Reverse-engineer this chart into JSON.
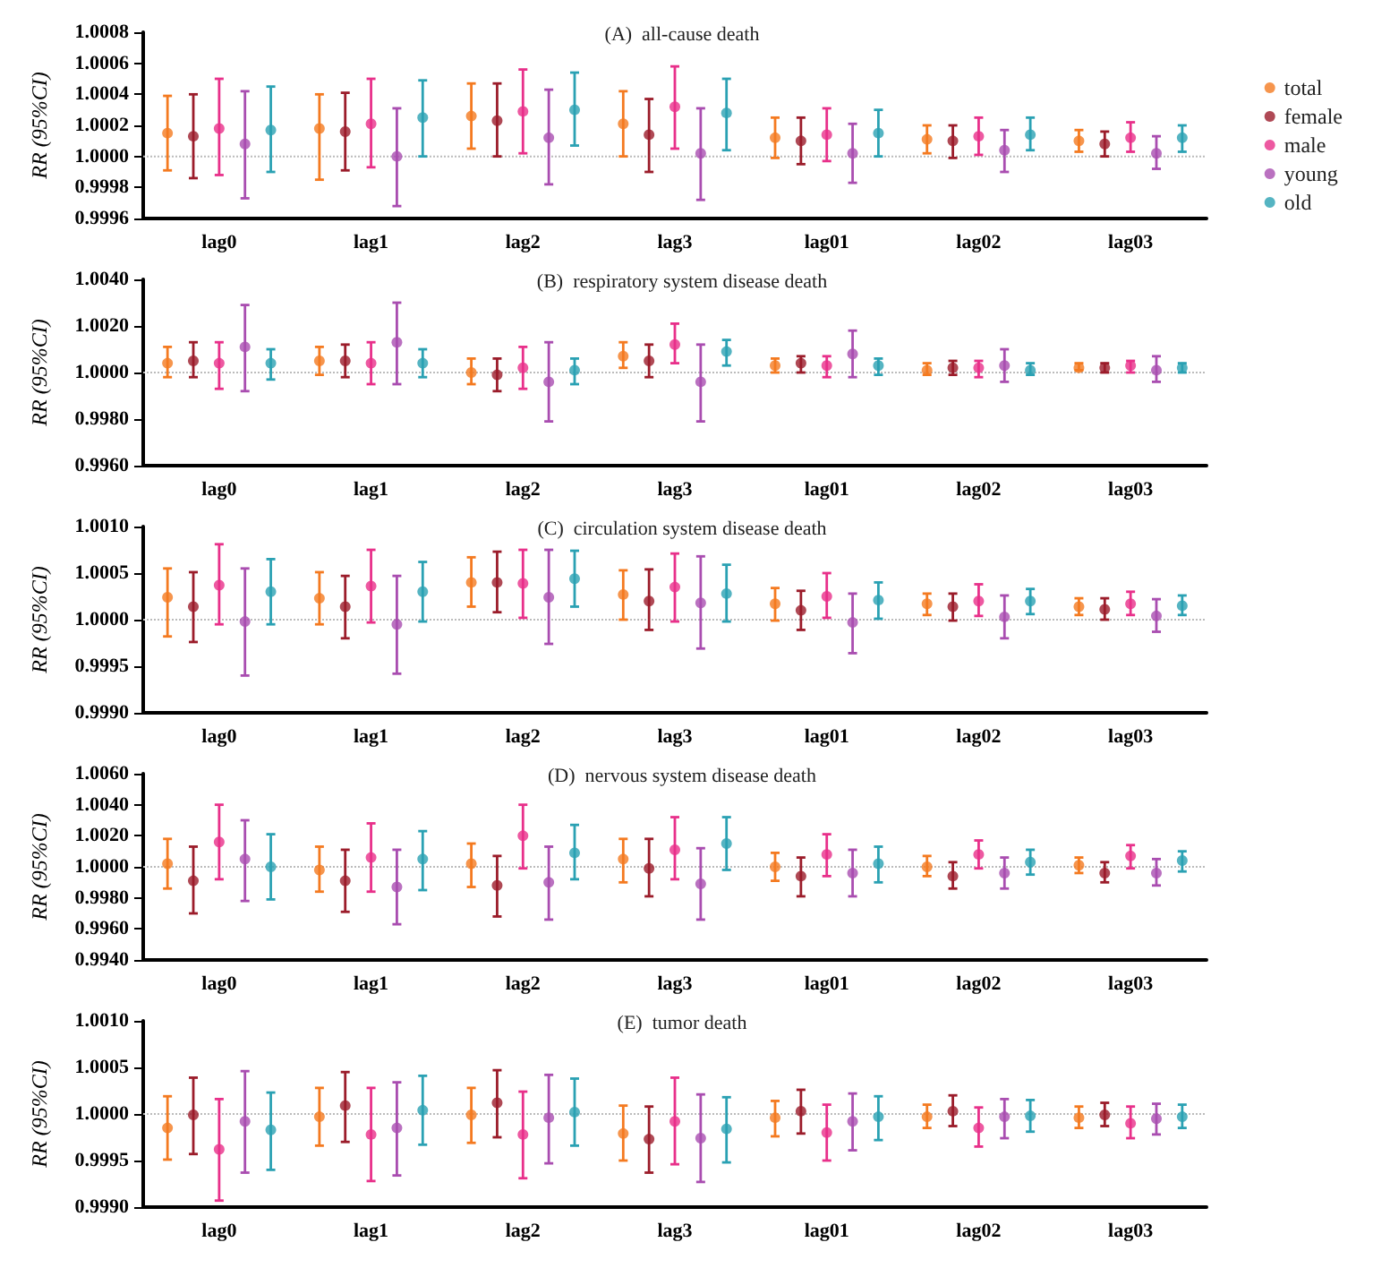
{
  "chart_data": [
    {
      "type": "scatter",
      "title": "(A)  all-cause death",
      "ylabel": "RR (95%CI)",
      "categories": [
        "lag0",
        "lag1",
        "lag2",
        "lag3",
        "lag01",
        "lag02",
        "lag03"
      ],
      "ylim": [
        0.9996,
        1.0008
      ],
      "yticks": [
        0.9996,
        0.9998,
        {
          "value": 1,
          "label": "1.0000"
        },
        1.0002,
        1.0004,
        1.0006,
        1.0008
      ],
      "grid": false,
      "legend": "right",
      "marker": "circle",
      "ref_lines": [
        {
          "axis": "y",
          "value": 1,
          "color": "#bbbbbb",
          "line_style": "dotted"
        }
      ],
      "series": [
        {
          "name": "total",
          "color": "#f47a20",
          "values": [
            1.00015,
            1.00018,
            1.00026,
            1.00021,
            1.00012,
            1.00011,
            1.0001
          ],
          "errors": [
            [
              0.99991,
              1.00039
            ],
            [
              0.99985,
              1.0004
            ],
            [
              1.00005,
              1.00047
            ],
            [
              1.0,
              1.00042
            ],
            [
              0.99999,
              1.00025
            ],
            [
              1.00002,
              1.0002
            ],
            [
              1.00003,
              1.00017
            ]
          ]
        },
        {
          "name": "female",
          "color": "#9b1c2a",
          "values": [
            1.00013,
            1.00016,
            1.00023,
            1.00014,
            1.0001,
            1.0001,
            1.00008
          ],
          "errors": [
            [
              0.99986,
              1.0004
            ],
            [
              0.99991,
              1.00041
            ],
            [
              1.0,
              1.00047
            ],
            [
              0.9999,
              1.00037
            ],
            [
              0.99995,
              1.00025
            ],
            [
              0.99999,
              1.0002
            ],
            [
              1.0,
              1.00016
            ]
          ]
        },
        {
          "name": "male",
          "color": "#e8308a",
          "values": [
            1.00018,
            1.00021,
            1.00029,
            1.00032,
            1.00014,
            1.00013,
            1.00012
          ],
          "errors": [
            [
              0.99988,
              1.0005
            ],
            [
              0.99993,
              1.0005
            ],
            [
              1.00002,
              1.00056
            ],
            [
              1.00005,
              1.00058
            ],
            [
              0.99997,
              1.00031
            ],
            [
              1.00001,
              1.00025
            ],
            [
              1.00003,
              1.00022
            ]
          ]
        },
        {
          "name": "young",
          "color": "#a94db0",
          "values": [
            1.00008,
            1.0,
            1.00012,
            1.00002,
            1.00002,
            1.00004,
            1.00002
          ],
          "errors": [
            [
              0.99973,
              1.00042
            ],
            [
              0.99968,
              1.00031
            ],
            [
              0.99982,
              1.00043
            ],
            [
              0.99972,
              1.00031
            ],
            [
              0.99983,
              1.00021
            ],
            [
              0.9999,
              1.00017
            ],
            [
              0.99992,
              1.00013
            ]
          ]
        },
        {
          "name": "old",
          "color": "#2aa1b3",
          "values": [
            1.00017,
            1.00025,
            1.0003,
            1.00028,
            1.00015,
            1.00014,
            1.00012
          ],
          "errors": [
            [
              0.9999,
              1.00045
            ],
            [
              1.0,
              1.00049
            ],
            [
              1.00007,
              1.00054
            ],
            [
              1.00004,
              1.0005
            ],
            [
              1.0,
              1.0003
            ],
            [
              1.00004,
              1.00025
            ],
            [
              1.00003,
              1.0002
            ]
          ]
        }
      ]
    },
    {
      "type": "scatter",
      "title": "(B)  respiratory system disease death",
      "ylabel": "RR (95%CI)",
      "categories": [
        "lag0",
        "lag1",
        "lag2",
        "lag3",
        "lag01",
        "lag02",
        "lag03"
      ],
      "ylim": [
        0.996,
        1.004
      ],
      "yticks": [
        {
          "value": 0.996,
          "label": "0.9960"
        },
        {
          "value": 0.998,
          "label": "0.9980"
        },
        {
          "value": 1,
          "label": "1.0000"
        },
        {
          "value": 1.002,
          "label": "1.0020"
        },
        {
          "value": 1.004,
          "label": "1.0040"
        }
      ],
      "grid": false,
      "legend": false,
      "marker": "circle",
      "ref_lines": [
        {
          "axis": "y",
          "value": 1,
          "color": "#bbbbbb",
          "line_style": "dotted"
        }
      ],
      "series": [
        {
          "color": "#f47a20",
          "values": [
            1.0004,
            1.0005,
            1.0,
            1.0007,
            1.0003,
            1.0001,
            1.0002
          ],
          "errors": [
            [
              0.9998,
              1.0011
            ],
            [
              0.9999,
              1.0011
            ],
            [
              0.9995,
              1.0006
            ],
            [
              1.0002,
              1.0013
            ],
            [
              1.0,
              1.0006
            ],
            [
              0.9999,
              1.0004
            ],
            [
              1.0001,
              1.0004
            ]
          ]
        },
        {
          "color": "#9b1c2a",
          "values": [
            1.0005,
            1.0005,
            0.9999,
            1.0005,
            1.0004,
            1.0002,
            1.0002
          ],
          "errors": [
            [
              0.9998,
              1.0013
            ],
            [
              0.9998,
              1.0012
            ],
            [
              0.9992,
              1.0006
            ],
            [
              0.9998,
              1.0012
            ],
            [
              1.0,
              1.0007
            ],
            [
              0.9999,
              1.0005
            ],
            [
              1.0,
              1.0004
            ]
          ]
        },
        {
          "color": "#e8308a",
          "values": [
            1.0004,
            1.0004,
            1.0002,
            1.0012,
            1.0003,
            1.0002,
            1.0003
          ],
          "errors": [
            [
              0.9993,
              1.0013
            ],
            [
              0.9995,
              1.0013
            ],
            [
              0.9993,
              1.0011
            ],
            [
              1.0004,
              1.0021
            ],
            [
              0.9998,
              1.0007
            ],
            [
              0.9998,
              1.0005
            ],
            [
              1.0,
              1.0005
            ]
          ]
        },
        {
          "color": "#a94db0",
          "values": [
            1.0011,
            1.0013,
            0.9996,
            0.9996,
            1.0008,
            1.0003,
            1.0001
          ],
          "errors": [
            [
              0.9992,
              1.0029
            ],
            [
              0.9995,
              1.003
            ],
            [
              0.9979,
              1.0013
            ],
            [
              0.9979,
              1.0012
            ],
            [
              0.9998,
              1.0018
            ],
            [
              0.9996,
              1.001
            ],
            [
              0.9996,
              1.0007
            ]
          ]
        },
        {
          "color": "#2aa1b3",
          "values": [
            1.0004,
            1.0004,
            1.0001,
            1.0009,
            1.0003,
            1.0001,
            1.0002
          ],
          "errors": [
            [
              0.9997,
              1.001
            ],
            [
              0.9998,
              1.001
            ],
            [
              0.9995,
              1.0006
            ],
            [
              1.0003,
              1.0014
            ],
            [
              0.9999,
              1.0006
            ],
            [
              0.9999,
              1.0004
            ],
            [
              1.0,
              1.0004
            ]
          ]
        }
      ]
    },
    {
      "type": "scatter",
      "title": "(C)  circulation system disease death",
      "ylabel": "RR (95%CI)",
      "categories": [
        "lag0",
        "lag1",
        "lag2",
        "lag3",
        "lag01",
        "lag02",
        "lag03"
      ],
      "ylim": [
        0.999,
        1.001
      ],
      "yticks": [
        {
          "value": 0.999,
          "label": "0.9990"
        },
        0.9995,
        {
          "value": 1,
          "label": "1.0000"
        },
        1.0005,
        {
          "value": 1.001,
          "label": "1.0010"
        }
      ],
      "grid": false,
      "legend": false,
      "marker": "circle",
      "ref_lines": [
        {
          "axis": "y",
          "value": 1,
          "color": "#bbbbbb",
          "line_style": "dotted"
        }
      ],
      "series": [
        {
          "color": "#f47a20",
          "values": [
            1.00024,
            1.00023,
            1.0004,
            1.00027,
            1.00017,
            1.00017,
            1.00014
          ],
          "errors": [
            [
              0.99982,
              1.00055
            ],
            [
              0.99995,
              1.00051
            ],
            [
              1.00014,
              1.00067
            ],
            [
              1.0,
              1.00053
            ],
            [
              0.99999,
              1.00034
            ],
            [
              1.00005,
              1.00028
            ],
            [
              1.00005,
              1.00023
            ]
          ]
        },
        {
          "color": "#9b1c2a",
          "values": [
            1.00014,
            1.00014,
            1.0004,
            1.0002,
            1.0001,
            1.00014,
            1.00011
          ],
          "errors": [
            [
              0.99976,
              1.00051
            ],
            [
              0.9998,
              1.00047
            ],
            [
              1.00008,
              1.00073
            ],
            [
              0.99989,
              1.00054
            ],
            [
              0.99989,
              1.00031
            ],
            [
              0.99999,
              1.00028
            ],
            [
              1.0,
              1.00023
            ]
          ]
        },
        {
          "color": "#e8308a",
          "values": [
            1.00037,
            1.00036,
            1.00039,
            1.00035,
            1.00025,
            1.0002,
            1.00017
          ],
          "errors": [
            [
              0.99995,
              1.00081
            ],
            [
              0.99997,
              1.00075
            ],
            [
              1.00002,
              1.00075
            ],
            [
              0.99998,
              1.00071
            ],
            [
              1.00002,
              1.0005
            ],
            [
              1.00004,
              1.00038
            ],
            [
              1.00005,
              1.0003
            ]
          ]
        },
        {
          "color": "#a94db0",
          "values": [
            0.99998,
            0.99995,
            1.00024,
            1.00018,
            0.99997,
            1.00003,
            1.00004
          ],
          "errors": [
            [
              0.9994,
              1.00055
            ],
            [
              0.99942,
              1.00047
            ],
            [
              0.99974,
              1.00075
            ],
            [
              0.99969,
              1.00068
            ],
            [
              0.99964,
              1.00028
            ],
            [
              0.9998,
              1.00026
            ],
            [
              0.99987,
              1.00022
            ]
          ]
        },
        {
          "color": "#2aa1b3",
          "values": [
            1.0003,
            1.0003,
            1.00044,
            1.00028,
            1.00021,
            1.0002,
            1.00015
          ],
          "errors": [
            [
              0.99995,
              1.00065
            ],
            [
              0.99998,
              1.00062
            ],
            [
              1.00014,
              1.00074
            ],
            [
              0.99998,
              1.00059
            ],
            [
              1.00001,
              1.0004
            ],
            [
              1.00006,
              1.00033
            ],
            [
              1.00005,
              1.00026
            ]
          ]
        }
      ]
    },
    {
      "type": "scatter",
      "title": "(D)  nervous system disease death",
      "ylabel": "RR (95%CI)",
      "categories": [
        "lag0",
        "lag1",
        "lag2",
        "lag3",
        "lag01",
        "lag02",
        "lag03"
      ],
      "ylim": [
        0.994,
        1.006
      ],
      "yticks": [
        {
          "value": 0.994,
          "label": "0.9940"
        },
        {
          "value": 0.996,
          "label": "0.9960"
        },
        {
          "value": 0.998,
          "label": "0.9980"
        },
        {
          "value": 1,
          "label": "1.0000"
        },
        {
          "value": 1.002,
          "label": "1.0020"
        },
        {
          "value": 1.004,
          "label": "1.0040"
        },
        {
          "value": 1.006,
          "label": "1.0060"
        }
      ],
      "grid": false,
      "legend": false,
      "marker": "circle",
      "ref_lines": [
        {
          "axis": "y",
          "value": 1,
          "color": "#bbbbbb",
          "line_style": "dotted"
        }
      ],
      "series": [
        {
          "color": "#f47a20",
          "values": [
            1.0002,
            0.9998,
            1.0002,
            1.0005,
            1.0,
            1.0,
            1.0001
          ],
          "errors": [
            [
              0.9986,
              1.0018
            ],
            [
              0.9984,
              1.0013
            ],
            [
              0.9987,
              1.0015
            ],
            [
              0.999,
              1.0018
            ],
            [
              0.9991,
              1.0009
            ],
            [
              0.9994,
              1.0007
            ],
            [
              0.9996,
              1.0006
            ]
          ]
        },
        {
          "color": "#9b1c2a",
          "values": [
            0.9991,
            0.9991,
            0.9988,
            0.9999,
            0.9994,
            0.9994,
            0.9996
          ],
          "errors": [
            [
              0.997,
              1.0013
            ],
            [
              0.9971,
              1.0011
            ],
            [
              0.9968,
              1.0007
            ],
            [
              0.9981,
              1.0018
            ],
            [
              0.9981,
              1.0006
            ],
            [
              0.9986,
              1.0003
            ],
            [
              0.999,
              1.0003
            ]
          ]
        },
        {
          "color": "#e8308a",
          "values": [
            1.0016,
            1.0006,
            1.002,
            1.0011,
            1.0008,
            1.0008,
            1.0007
          ],
          "errors": [
            [
              0.9992,
              1.004
            ],
            [
              0.9984,
              1.0028
            ],
            [
              0.9999,
              1.004
            ],
            [
              0.9992,
              1.0032
            ],
            [
              0.9994,
              1.0021
            ],
            [
              0.9999,
              1.0017
            ],
            [
              0.9999,
              1.0014
            ]
          ]
        },
        {
          "color": "#a94db0",
          "values": [
            1.0005,
            0.9987,
            0.999,
            0.9989,
            0.9996,
            0.9996,
            0.9996
          ],
          "errors": [
            [
              0.9978,
              1.003
            ],
            [
              0.9963,
              1.0011
            ],
            [
              0.9966,
              1.0013
            ],
            [
              0.9966,
              1.0012
            ],
            [
              0.9981,
              1.0011
            ],
            [
              0.9986,
              1.0006
            ],
            [
              0.9988,
              1.0005
            ]
          ]
        },
        {
          "color": "#2aa1b3",
          "values": [
            1.0,
            1.0005,
            1.0009,
            1.0015,
            1.0002,
            1.0003,
            1.0004
          ],
          "errors": [
            [
              0.9979,
              1.0021
            ],
            [
              0.9985,
              1.0023
            ],
            [
              0.9992,
              1.0027
            ],
            [
              0.9998,
              1.0032
            ],
            [
              0.999,
              1.0013
            ],
            [
              0.9995,
              1.0011
            ],
            [
              0.9997,
              1.001
            ]
          ]
        }
      ]
    },
    {
      "type": "scatter",
      "title": "(E)  tumor death",
      "ylabel": "RR (95%CI)",
      "categories": [
        "lag0",
        "lag1",
        "lag2",
        "lag3",
        "lag01",
        "lag02",
        "lag03"
      ],
      "ylim": [
        0.999,
        1.001
      ],
      "yticks": [
        {
          "value": 0.999,
          "label": "0.9990"
        },
        0.9995,
        {
          "value": 1,
          "label": "1.0000"
        },
        1.0005,
        {
          "value": 1.001,
          "label": "1.0010"
        }
      ],
      "grid": false,
      "legend": false,
      "marker": "circle",
      "ref_lines": [
        {
          "axis": "y",
          "value": 1,
          "color": "#bbbbbb",
          "line_style": "dotted"
        }
      ],
      "series": [
        {
          "color": "#f47a20",
          "values": [
            0.99985,
            0.99997,
            0.99999,
            0.99979,
            0.99996,
            0.99997,
            0.99996
          ],
          "errors": [
            [
              0.99951,
              1.00019
            ],
            [
              0.99966,
              1.00028
            ],
            [
              0.99969,
              1.00028
            ],
            [
              0.9995,
              1.00009
            ],
            [
              0.99976,
              1.00014
            ],
            [
              0.99985,
              1.0001
            ],
            [
              0.99985,
              1.00008
            ]
          ]
        },
        {
          "color": "#9b1c2a",
          "values": [
            0.99999,
            1.00009,
            1.00012,
            0.99973,
            1.00003,
            1.00003,
            0.99999
          ],
          "errors": [
            [
              0.99957,
              1.00039
            ],
            [
              0.9997,
              1.00045
            ],
            [
              0.99975,
              1.00047
            ],
            [
              0.99937,
              1.00008
            ],
            [
              0.99979,
              1.00026
            ],
            [
              0.99987,
              1.0002
            ],
            [
              0.99987,
              1.00012
            ]
          ]
        },
        {
          "color": "#e8308a",
          "values": [
            0.99962,
            0.99978,
            0.99978,
            0.99992,
            0.9998,
            0.99985,
            0.9999
          ],
          "errors": [
            [
              0.99907,
              1.00016
            ],
            [
              0.99928,
              1.00028
            ],
            [
              0.99931,
              1.00024
            ],
            [
              0.99946,
              1.00039
            ],
            [
              0.9995,
              1.0001
            ],
            [
              0.99965,
              1.00007
            ],
            [
              0.99974,
              1.00008
            ]
          ]
        },
        {
          "color": "#a94db0",
          "values": [
            0.99992,
            0.99985,
            0.99996,
            0.99974,
            0.99992,
            0.99997,
            0.99995
          ],
          "errors": [
            [
              0.99937,
              1.00046
            ],
            [
              0.99934,
              1.00034
            ],
            [
              0.99947,
              1.00042
            ],
            [
              0.99927,
              1.00021
            ],
            [
              0.99961,
              1.00022
            ],
            [
              0.99974,
              1.00016
            ],
            [
              0.99978,
              1.00011
            ]
          ]
        },
        {
          "color": "#2aa1b3",
          "values": [
            0.99983,
            1.00004,
            1.00002,
            0.99984,
            0.99997,
            0.99998,
            0.99997
          ],
          "errors": [
            [
              0.9994,
              1.00023
            ],
            [
              0.99967,
              1.00041
            ],
            [
              0.99966,
              1.00038
            ],
            [
              0.99948,
              1.00018
            ],
            [
              0.99972,
              1.00019
            ],
            [
              0.99981,
              1.00015
            ],
            [
              0.99985,
              1.0001
            ]
          ]
        }
      ]
    }
  ]
}
